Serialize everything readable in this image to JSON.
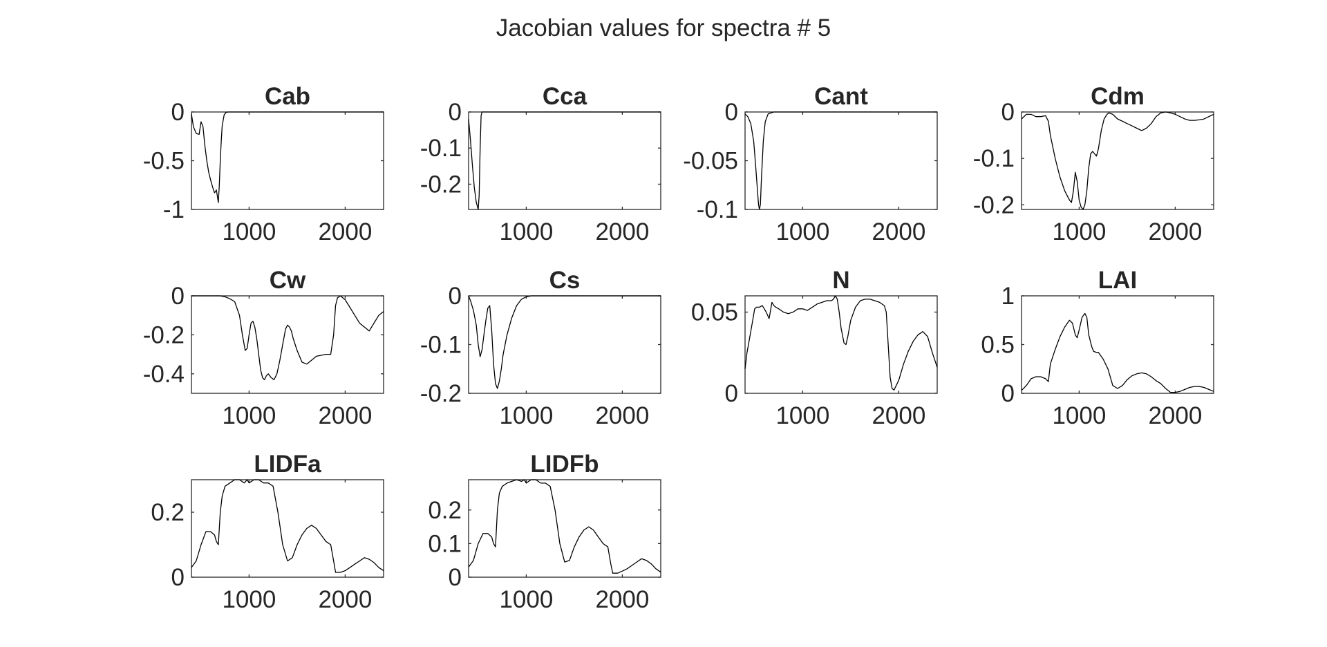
{
  "figure": {
    "title": "Jacobian values for spectra # 5"
  },
  "colors": {
    "line": "#000000",
    "axis": "#262626",
    "background": "#ffffff"
  },
  "chart_data": [
    {
      "type": "line",
      "title": "Cab",
      "xlim": [
        400,
        2400
      ],
      "ylim": [
        -1,
        0
      ],
      "xticks": [
        1000,
        2000
      ],
      "xtick_labels": [
        "1000",
        "2000"
      ],
      "yticks": [
        0,
        -0.5,
        -1
      ],
      "ytick_labels": [
        "0",
        "-0.5",
        "-1"
      ],
      "grid": false,
      "series": [
        {
          "x": [
            400,
            420,
            450,
            480,
            500,
            520,
            540,
            560,
            580,
            600,
            620,
            640,
            660,
            680,
            690,
            700,
            710,
            720,
            740,
            760,
            780,
            800,
            2400
          ],
          "y": [
            -0.02,
            -0.15,
            -0.22,
            -0.23,
            -0.1,
            -0.15,
            -0.35,
            -0.5,
            -0.62,
            -0.7,
            -0.77,
            -0.83,
            -0.8,
            -0.93,
            -0.75,
            -0.5,
            -0.3,
            -0.14,
            -0.03,
            -0.005,
            0,
            0,
            0
          ]
        }
      ]
    },
    {
      "type": "line",
      "title": "Cca",
      "xlim": [
        400,
        2400
      ],
      "ylim": [
        -0.27,
        0
      ],
      "xticks": [
        1000,
        2000
      ],
      "xtick_labels": [
        "1000",
        "2000"
      ],
      "yticks": [
        0,
        -0.1,
        -0.2
      ],
      "ytick_labels": [
        "0",
        "-0.1",
        "-0.2"
      ],
      "grid": false,
      "series": [
        {
          "x": [
            400,
            420,
            440,
            460,
            480,
            500,
            510,
            520,
            530,
            540,
            2400
          ],
          "y": [
            -0.02,
            -0.08,
            -0.15,
            -0.21,
            -0.25,
            -0.27,
            -0.23,
            -0.1,
            -0.01,
            0,
            0
          ]
        }
      ]
    },
    {
      "type": "line",
      "title": "Cant",
      "xlim": [
        400,
        2400
      ],
      "ylim": [
        -0.1,
        0
      ],
      "xticks": [
        1000,
        2000
      ],
      "xtick_labels": [
        "1000",
        "2000"
      ],
      "yticks": [
        0,
        -0.05,
        -0.1
      ],
      "ytick_labels": [
        "0",
        "-0.05",
        "-0.1"
      ],
      "grid": false,
      "series": [
        {
          "x": [
            400,
            430,
            460,
            490,
            510,
            530,
            540,
            550,
            560,
            570,
            590,
            610,
            640,
            700,
            2400
          ],
          "y": [
            -0.002,
            -0.005,
            -0.012,
            -0.03,
            -0.055,
            -0.082,
            -0.095,
            -0.1,
            -0.095,
            -0.07,
            -0.03,
            -0.01,
            -0.002,
            0,
            0
          ]
        }
      ]
    },
    {
      "type": "line",
      "title": "Cdm",
      "xlim": [
        400,
        2400
      ],
      "ylim": [
        -0.21,
        0
      ],
      "xticks": [
        1000,
        2000
      ],
      "xtick_labels": [
        "1000",
        "2000"
      ],
      "yticks": [
        0,
        -0.1,
        -0.2
      ],
      "ytick_labels": [
        "0",
        "-0.1",
        "-0.2"
      ],
      "grid": false,
      "series": [
        {
          "x": [
            400,
            450,
            500,
            550,
            600,
            650,
            680,
            700,
            750,
            800,
            850,
            900,
            920,
            940,
            960,
            980,
            1000,
            1020,
            1040,
            1060,
            1080,
            1100,
            1120,
            1140,
            1160,
            1180,
            1200,
            1230,
            1260,
            1290,
            1310,
            1350,
            1400,
            1450,
            1500,
            1550,
            1600,
            1650,
            1700,
            1750,
            1800,
            1850,
            1900,
            1950,
            2000,
            2050,
            2100,
            2150,
            2200,
            2250,
            2300,
            2350,
            2400
          ],
          "y": [
            -0.015,
            -0.005,
            -0.005,
            -0.01,
            -0.01,
            -0.008,
            -0.02,
            -0.05,
            -0.1,
            -0.14,
            -0.17,
            -0.19,
            -0.195,
            -0.17,
            -0.13,
            -0.15,
            -0.19,
            -0.205,
            -0.21,
            -0.2,
            -0.17,
            -0.12,
            -0.09,
            -0.085,
            -0.09,
            -0.095,
            -0.08,
            -0.04,
            -0.015,
            -0.005,
            -0.002,
            -0.005,
            -0.015,
            -0.02,
            -0.025,
            -0.03,
            -0.035,
            -0.04,
            -0.035,
            -0.025,
            -0.01,
            -0.002,
            0,
            -0.002,
            -0.005,
            -0.01,
            -0.015,
            -0.018,
            -0.018,
            -0.017,
            -0.015,
            -0.01,
            -0.005
          ]
        }
      ]
    },
    {
      "type": "line",
      "title": "Cw",
      "xlim": [
        400,
        2400
      ],
      "ylim": [
        -0.5,
        0
      ],
      "xticks": [
        1000,
        2000
      ],
      "xtick_labels": [
        "1000",
        "2000"
      ],
      "yticks": [
        0,
        -0.2,
        -0.4
      ],
      "ytick_labels": [
        "0",
        "-0.2",
        "-0.4"
      ],
      "grid": false,
      "series": [
        {
          "x": [
            400,
            600,
            700,
            750,
            800,
            850,
            900,
            930,
            960,
            980,
            1000,
            1020,
            1040,
            1060,
            1080,
            1100,
            1120,
            1140,
            1160,
            1180,
            1200,
            1230,
            1260,
            1290,
            1320,
            1350,
            1380,
            1400,
            1420,
            1440,
            1460,
            1500,
            1550,
            1600,
            1650,
            1700,
            1750,
            1800,
            1850,
            1880,
            1900,
            1920,
            1950,
            2000,
            2050,
            2100,
            2150,
            2200,
            2250,
            2300,
            2350,
            2400
          ],
          "y": [
            0,
            0,
            0,
            -0.005,
            -0.015,
            -0.03,
            -0.1,
            -0.2,
            -0.28,
            -0.27,
            -0.2,
            -0.14,
            -0.13,
            -0.16,
            -0.22,
            -0.3,
            -0.38,
            -0.42,
            -0.43,
            -0.41,
            -0.4,
            -0.42,
            -0.43,
            -0.4,
            -0.33,
            -0.25,
            -0.17,
            -0.15,
            -0.16,
            -0.18,
            -0.22,
            -0.28,
            -0.34,
            -0.35,
            -0.33,
            -0.31,
            -0.305,
            -0.3,
            -0.3,
            -0.2,
            -0.05,
            -0.01,
            0,
            -0.02,
            -0.06,
            -0.1,
            -0.14,
            -0.16,
            -0.18,
            -0.14,
            -0.1,
            -0.08
          ]
        }
      ]
    },
    {
      "type": "line",
      "title": "Cs",
      "xlim": [
        400,
        2400
      ],
      "ylim": [
        -0.2,
        0
      ],
      "xticks": [
        1000,
        2000
      ],
      "xtick_labels": [
        "1000",
        "2000"
      ],
      "yticks": [
        0,
        -0.1,
        -0.2
      ],
      "ytick_labels": [
        "0",
        "-0.1",
        "-0.2"
      ],
      "grid": false,
      "series": [
        {
          "x": [
            400,
            420,
            450,
            480,
            500,
            520,
            540,
            560,
            580,
            600,
            620,
            640,
            660,
            680,
            700,
            720,
            740,
            760,
            800,
            850,
            900,
            950,
            1000,
            1050,
            1100,
            2400
          ],
          "y": [
            0,
            -0.01,
            -0.03,
            -0.06,
            -0.1,
            -0.125,
            -0.11,
            -0.08,
            -0.05,
            -0.025,
            -0.02,
            -0.07,
            -0.14,
            -0.18,
            -0.19,
            -0.175,
            -0.15,
            -0.12,
            -0.08,
            -0.045,
            -0.02,
            -0.007,
            -0.002,
            0,
            0,
            0
          ]
        }
      ]
    },
    {
      "type": "line",
      "title": "N",
      "xlim": [
        400,
        2400
      ],
      "ylim": [
        0,
        0.06
      ],
      "xticks": [
        1000,
        2000
      ],
      "xtick_labels": [
        "1000",
        "2000"
      ],
      "yticks": [
        0,
        0.05
      ],
      "ytick_labels": [
        "0",
        "0.05"
      ],
      "grid": false,
      "series": [
        {
          "x": [
            400,
            420,
            450,
            480,
            500,
            520,
            550,
            580,
            600,
            620,
            650,
            680,
            700,
            720,
            750,
            800,
            850,
            900,
            950,
            1000,
            1050,
            1100,
            1150,
            1200,
            1250,
            1300,
            1320,
            1340,
            1360,
            1380,
            1400,
            1430,
            1450,
            1470,
            1500,
            1550,
            1600,
            1650,
            1700,
            1750,
            1800,
            1850,
            1870,
            1890,
            1910,
            1930,
            1950,
            2000,
            2050,
            2100,
            2150,
            2200,
            2250,
            2300,
            2350,
            2400
          ],
          "y": [
            0.015,
            0.025,
            0.035,
            0.045,
            0.052,
            0.053,
            0.053,
            0.054,
            0.052,
            0.05,
            0.046,
            0.056,
            0.054,
            0.053,
            0.052,
            0.05,
            0.049,
            0.05,
            0.052,
            0.052,
            0.051,
            0.053,
            0.055,
            0.056,
            0.057,
            0.057,
            0.058,
            0.06,
            0.058,
            0.05,
            0.04,
            0.031,
            0.03,
            0.035,
            0.045,
            0.053,
            0.057,
            0.058,
            0.058,
            0.057,
            0.056,
            0.054,
            0.05,
            0.03,
            0.01,
            0.003,
            0.002,
            0.008,
            0.018,
            0.026,
            0.032,
            0.036,
            0.038,
            0.035,
            0.025,
            0.016
          ]
        }
      ]
    },
    {
      "type": "line",
      "title": "LAI",
      "xlim": [
        400,
        2400
      ],
      "ylim": [
        0,
        1
      ],
      "xticks": [
        1000,
        2000
      ],
      "xtick_labels": [
        "1000",
        "2000"
      ],
      "yticks": [
        0,
        0.5,
        1
      ],
      "ytick_labels": [
        "0",
        "0.5",
        "1"
      ],
      "grid": false,
      "series": [
        {
          "x": [
            400,
            450,
            500,
            550,
            600,
            650,
            680,
            700,
            750,
            800,
            850,
            900,
            930,
            960,
            980,
            1000,
            1030,
            1060,
            1080,
            1100,
            1130,
            1150,
            1180,
            1200,
            1250,
            1300,
            1350,
            1400,
            1450,
            1500,
            1550,
            1600,
            1650,
            1700,
            1750,
            1800,
            1850,
            1900,
            1950,
            2000,
            2050,
            2100,
            2150,
            2200,
            2250,
            2300,
            2350,
            2400
          ],
          "y": [
            0.03,
            0.08,
            0.15,
            0.17,
            0.17,
            0.15,
            0.12,
            0.3,
            0.45,
            0.58,
            0.68,
            0.75,
            0.72,
            0.6,
            0.57,
            0.65,
            0.78,
            0.82,
            0.78,
            0.6,
            0.48,
            0.43,
            0.42,
            0.42,
            0.35,
            0.25,
            0.08,
            0.05,
            0.08,
            0.14,
            0.18,
            0.2,
            0.21,
            0.2,
            0.17,
            0.13,
            0.1,
            0.05,
            0.01,
            0.01,
            0.02,
            0.04,
            0.06,
            0.07,
            0.07,
            0.06,
            0.04,
            0.02
          ]
        }
      ]
    },
    {
      "type": "line",
      "title": "LIDFa",
      "xlim": [
        400,
        2400
      ],
      "ylim": [
        0,
        0.3
      ],
      "xticks": [
        1000,
        2000
      ],
      "xtick_labels": [
        "1000",
        "2000"
      ],
      "yticks": [
        0,
        0.2
      ],
      "ytick_labels": [
        "0",
        "0.2"
      ],
      "grid": false,
      "series": [
        {
          "x": [
            400,
            450,
            500,
            550,
            600,
            640,
            660,
            680,
            700,
            720,
            750,
            800,
            850,
            900,
            950,
            980,
            1000,
            1050,
            1100,
            1150,
            1200,
            1250,
            1300,
            1350,
            1400,
            1450,
            1500,
            1550,
            1600,
            1650,
            1700,
            1750,
            1800,
            1850,
            1880,
            1900,
            1950,
            2000,
            2050,
            2100,
            2150,
            2200,
            2250,
            2300,
            2350,
            2400
          ],
          "y": [
            0.03,
            0.05,
            0.1,
            0.14,
            0.14,
            0.13,
            0.11,
            0.1,
            0.2,
            0.25,
            0.28,
            0.29,
            0.3,
            0.3,
            0.29,
            0.3,
            0.29,
            0.3,
            0.3,
            0.29,
            0.29,
            0.28,
            0.2,
            0.1,
            0.05,
            0.06,
            0.1,
            0.13,
            0.15,
            0.16,
            0.15,
            0.13,
            0.11,
            0.1,
            0.05,
            0.015,
            0.015,
            0.02,
            0.03,
            0.04,
            0.05,
            0.06,
            0.055,
            0.045,
            0.03,
            0.02
          ]
        }
      ]
    },
    {
      "type": "line",
      "title": "LIDFb",
      "xlim": [
        400,
        2400
      ],
      "ylim": [
        0,
        0.29
      ],
      "xticks": [
        1000,
        2000
      ],
      "xtick_labels": [
        "1000",
        "2000"
      ],
      "yticks": [
        0,
        0.1,
        0.2
      ],
      "ytick_labels": [
        "0",
        "0.1",
        "0.2"
      ],
      "grid": false,
      "series": [
        {
          "x": [
            400,
            450,
            500,
            550,
            600,
            640,
            660,
            680,
            700,
            720,
            750,
            800,
            850,
            900,
            950,
            980,
            1000,
            1050,
            1100,
            1150,
            1200,
            1250,
            1300,
            1350,
            1400,
            1450,
            1500,
            1550,
            1600,
            1650,
            1700,
            1750,
            1800,
            1850,
            1880,
            1900,
            1950,
            2000,
            2050,
            2100,
            2150,
            2200,
            2250,
            2300,
            2350,
            2400
          ],
          "y": [
            0.03,
            0.05,
            0.1,
            0.13,
            0.13,
            0.12,
            0.1,
            0.09,
            0.2,
            0.25,
            0.27,
            0.28,
            0.285,
            0.29,
            0.285,
            0.29,
            0.28,
            0.29,
            0.29,
            0.28,
            0.28,
            0.27,
            0.2,
            0.1,
            0.045,
            0.05,
            0.09,
            0.12,
            0.14,
            0.15,
            0.14,
            0.12,
            0.1,
            0.09,
            0.04,
            0.012,
            0.012,
            0.018,
            0.025,
            0.035,
            0.045,
            0.055,
            0.05,
            0.04,
            0.025,
            0.015
          ]
        }
      ]
    }
  ]
}
